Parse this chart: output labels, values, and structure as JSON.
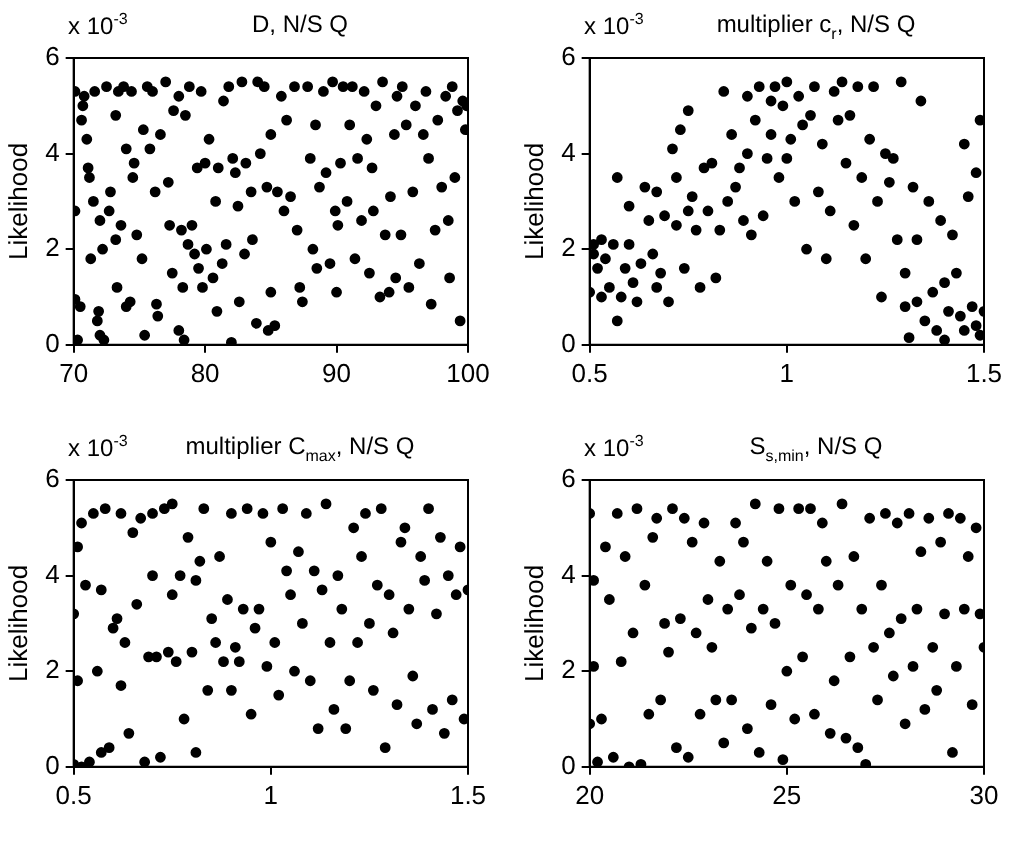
{
  "chart_data": [
    {
      "type": "scatter",
      "title": "D,  N/S  Q",
      "ylabel": "Likelihood",
      "annotations": [
        "x 10$^{-3}$"
      ],
      "color": "#000000",
      "marker": "circle",
      "xlim": [
        70,
        100
      ],
      "ylim": [
        0,
        6
      ],
      "xticks": [
        70,
        80,
        90,
        100
      ],
      "yticks": [
        0,
        2,
        4,
        6
      ],
      "x": [
        70.1,
        70.1,
        70.1,
        70.3,
        70.5,
        70.6,
        70.7,
        70.8,
        71.0,
        71.1,
        71.2,
        71.3,
        71.5,
        71.6,
        71.8,
        71.9,
        72.0,
        72.0,
        72.2,
        72.3,
        72.5,
        72.7,
        72.8,
        73.2,
        73.2,
        73.3,
        73.4,
        73.6,
        73.8,
        74.0,
        74.0,
        74.3,
        74.4,
        74.5,
        74.6,
        74.8,
        75.2,
        75.3,
        75.4,
        75.6,
        75.8,
        76.0,
        76.2,
        76.3,
        76.4,
        76.6,
        77.0,
        77.2,
        77.3,
        77.5,
        77.6,
        78.0,
        78.0,
        78.2,
        78.3,
        78.4,
        78.5,
        78.7,
        78.8,
        79.0,
        79.2,
        79.4,
        79.5,
        79.7,
        79.8,
        80.0,
        80.1,
        80.3,
        80.6,
        80.8,
        80.9,
        81.0,
        81.3,
        81.4,
        81.6,
        81.8,
        82.1,
        82.0,
        82.3,
        82.5,
        82.6,
        82.8,
        83.0,
        83.1,
        83.5,
        83.6,
        83.9,
        84.0,
        84.2,
        84.5,
        84.7,
        84.8,
        85.0,
        85.0,
        85.3,
        85.5,
        85.8,
        86.0,
        86.2,
        86.5,
        86.8,
        87.0,
        87.2,
        87.4,
        87.8,
        88.0,
        88.2,
        88.4,
        88.5,
        88.7,
        89.0,
        89.2,
        89.5,
        89.7,
        89.9,
        90.0,
        90.1,
        90.3,
        90.5,
        90.8,
        91.0,
        91.2,
        91.4,
        91.6,
        91.9,
        92.1,
        92.3,
        92.5,
        92.7,
        92.8,
        93.0,
        93.3,
        93.5,
        93.7,
        94.0,
        94.1,
        94.4,
        94.5,
        94.6,
        94.9,
        95.0,
        95.3,
        95.5,
        95.8,
        96.0,
        96.3,
        96.6,
        96.8,
        97.0,
        97.2,
        97.5,
        97.7,
        98.0,
        98.3,
        98.5,
        98.6,
        98.8,
        99.0,
        99.2,
        99.4,
        99.6,
        99.8,
        99.9
      ],
      "values": [
        5.3,
        2.8,
        0.95,
        0.1,
        0.8,
        4.7,
        5.0,
        5.2,
        4.3,
        3.7,
        3.5,
        1.8,
        3.0,
        5.3,
        0.5,
        0.7,
        2.6,
        0.2,
        2.0,
        0.1,
        5.4,
        2.8,
        3.2,
        2.2,
        4.8,
        1.2,
        5.3,
        2.5,
        5.4,
        4.1,
        0.8,
        0.9,
        5.3,
        3.5,
        3.8,
        2.3,
        1.8,
        4.5,
        0.2,
        5.4,
        4.1,
        5.3,
        3.2,
        0.85,
        0.6,
        4.4,
        5.5,
        3.4,
        2.5,
        1.5,
        4.9,
        5.2,
        0.3,
        2.4,
        1.2,
        0.1,
        4.8,
        2.1,
        5.4,
        2.5,
        1.9,
        3.7,
        1.6,
        5.3,
        1.2,
        3.8,
        2.0,
        4.3,
        1.4,
        3.0,
        0.7,
        3.7,
        1.7,
        5.1,
        2.1,
        5.4,
        3.9,
        0.05,
        3.6,
        2.9,
        0.9,
        5.5,
        1.9,
        3.8,
        3.2,
        2.2,
        0.45,
        5.5,
        4.0,
        5.4,
        3.3,
        0.3,
        4.4,
        1.1,
        0.4,
        3.2,
        5.2,
        2.8,
        4.7,
        3.1,
        5.4,
        2.4,
        1.2,
        0.9,
        5.4,
        3.9,
        2.0,
        4.6,
        1.6,
        3.3,
        5.3,
        3.6,
        1.7,
        5.5,
        2.8,
        1.1,
        2.5,
        3.8,
        5.4,
        3.0,
        4.6,
        5.4,
        1.8,
        3.9,
        2.6,
        5.3,
        4.3,
        1.5,
        3.7,
        2.8,
        5.0,
        1.0,
        5.5,
        2.3,
        1.1,
        3.1,
        4.4,
        1.4,
        5.2,
        2.3,
        5.4,
        4.6,
        1.2,
        3.2,
        5.0,
        1.7,
        4.4,
        5.3,
        3.9,
        0.85,
        2.4,
        4.7,
        3.3,
        5.2,
        2.6,
        1.4,
        5.4,
        3.5,
        4.9,
        0.5,
        5.1,
        4.5,
        5.0
      ]
    },
    {
      "type": "scatter",
      "title": "multiplier c$_{r}$,  N/S  Q",
      "ylabel": "Likelihood",
      "annotations": [
        "x 10$^{-3}$"
      ],
      "color": "#000000",
      "marker": "circle",
      "xlim": [
        0.5,
        1.5
      ],
      "ylim": [
        0,
        6
      ],
      "xticks": [
        0.5,
        1,
        1.5
      ],
      "yticks": [
        0,
        2,
        4,
        6
      ],
      "x": [
        0.5,
        0.51,
        0.51,
        0.52,
        0.53,
        0.53,
        0.54,
        0.55,
        0.56,
        0.57,
        0.57,
        0.58,
        0.59,
        0.6,
        0.6,
        0.61,
        0.62,
        0.63,
        0.64,
        0.65,
        0.66,
        0.67,
        0.67,
        0.68,
        0.69,
        0.7,
        0.71,
        0.72,
        0.72,
        0.73,
        0.74,
        0.75,
        0.75,
        0.76,
        0.77,
        0.78,
        0.79,
        0.8,
        0.81,
        0.82,
        0.83,
        0.84,
        0.85,
        0.86,
        0.87,
        0.88,
        0.89,
        0.9,
        0.9,
        0.91,
        0.92,
        0.93,
        0.94,
        0.95,
        0.96,
        0.96,
        0.97,
        0.98,
        0.99,
        1.0,
        1.0,
        1.01,
        1.02,
        1.03,
        1.04,
        1.05,
        1.06,
        1.07,
        1.08,
        1.09,
        1.1,
        1.11,
        1.12,
        1.13,
        1.14,
        1.15,
        1.16,
        1.17,
        1.18,
        1.19,
        1.2,
        1.21,
        1.22,
        1.23,
        1.24,
        1.25,
        1.26,
        1.27,
        1.28,
        1.29,
        1.3,
        1.3,
        1.31,
        1.32,
        1.33,
        1.33,
        1.34,
        1.35,
        1.36,
        1.37,
        1.38,
        1.39,
        1.4,
        1.4,
        1.41,
        1.42,
        1.43,
        1.44,
        1.45,
        1.45,
        1.46,
        1.47,
        1.48,
        1.48,
        1.49,
        1.49,
        1.5
      ],
      "values": [
        1.1,
        1.9,
        2.1,
        1.6,
        1.0,
        2.2,
        1.8,
        1.2,
        2.1,
        3.5,
        0.5,
        1.0,
        1.6,
        2.9,
        2.1,
        1.3,
        0.9,
        1.7,
        3.3,
        2.6,
        1.9,
        3.2,
        1.2,
        1.5,
        2.7,
        0.9,
        4.1,
        3.5,
        2.5,
        4.5,
        1.6,
        2.8,
        4.9,
        3.1,
        2.4,
        1.2,
        3.7,
        2.8,
        3.8,
        1.4,
        2.4,
        5.3,
        3.0,
        4.4,
        3.3,
        3.7,
        2.6,
        5.2,
        4.0,
        2.3,
        4.7,
        5.4,
        2.7,
        3.9,
        5.1,
        4.4,
        5.4,
        3.5,
        5.0,
        3.9,
        5.5,
        4.3,
        3.0,
        5.2,
        4.6,
        2.0,
        4.8,
        5.4,
        3.2,
        4.2,
        1.8,
        2.8,
        5.3,
        4.7,
        5.5,
        3.8,
        4.8,
        2.5,
        5.4,
        3.5,
        1.8,
        4.3,
        5.4,
        3.0,
        1.0,
        4.0,
        3.4,
        3.9,
        2.2,
        5.5,
        0.8,
        1.5,
        0.15,
        3.3,
        0.9,
        2.2,
        5.1,
        0.5,
        3.0,
        1.1,
        0.3,
        2.6,
        1.3,
        0.1,
        0.7,
        2.3,
        1.5,
        0.6,
        4.2,
        0.3,
        3.1,
        0.8,
        0.4,
        3.6,
        0.2,
        4.7,
        0.7
      ]
    },
    {
      "type": "scatter",
      "title": "multiplier C$_{max}$,  N/S  Q",
      "ylabel": "Likelihood",
      "annotations": [
        "x 10$^{-3}$"
      ],
      "color": "#000000",
      "marker": "circle",
      "xlim": [
        0.5,
        1.5
      ],
      "ylim": [
        0,
        6
      ],
      "xticks": [
        0.5,
        1,
        1.5
      ],
      "yticks": [
        0,
        2,
        4,
        6
      ],
      "x": [
        0.5,
        0.5,
        0.51,
        0.51,
        0.52,
        0.52,
        0.53,
        0.54,
        0.55,
        0.56,
        0.57,
        0.57,
        0.58,
        0.59,
        0.6,
        0.61,
        0.62,
        0.62,
        0.63,
        0.64,
        0.65,
        0.66,
        0.67,
        0.68,
        0.69,
        0.7,
        0.7,
        0.71,
        0.72,
        0.73,
        0.74,
        0.75,
        0.75,
        0.76,
        0.77,
        0.78,
        0.79,
        0.8,
        0.81,
        0.81,
        0.82,
        0.83,
        0.84,
        0.85,
        0.86,
        0.87,
        0.88,
        0.89,
        0.9,
        0.9,
        0.91,
        0.92,
        0.93,
        0.94,
        0.95,
        0.96,
        0.97,
        0.98,
        0.99,
        1.0,
        1.01,
        1.02,
        1.03,
        1.04,
        1.05,
        1.06,
        1.07,
        1.08,
        1.09,
        1.1,
        1.11,
        1.12,
        1.13,
        1.14,
        1.15,
        1.16,
        1.17,
        1.18,
        1.19,
        1.2,
        1.21,
        1.22,
        1.23,
        1.24,
        1.25,
        1.26,
        1.27,
        1.28,
        1.29,
        1.3,
        1.31,
        1.32,
        1.33,
        1.34,
        1.35,
        1.36,
        1.37,
        1.38,
        1.39,
        1.4,
        1.41,
        1.42,
        1.43,
        1.44,
        1.45,
        1.46,
        1.47,
        1.48,
        1.49,
        1.5
      ],
      "values": [
        0.05,
        3.2,
        4.6,
        1.8,
        5.1,
        0.0,
        3.8,
        0.1,
        5.3,
        2.0,
        0.3,
        3.7,
        5.4,
        0.4,
        2.9,
        3.1,
        5.3,
        1.7,
        2.6,
        0.7,
        4.9,
        3.4,
        5.2,
        0.1,
        2.3,
        5.3,
        4.0,
        2.3,
        0.2,
        5.4,
        2.4,
        5.5,
        3.6,
        2.2,
        4.0,
        1.0,
        4.8,
        2.4,
        0.3,
        3.9,
        4.3,
        5.4,
        1.6,
        3.1,
        2.6,
        4.4,
        2.2,
        3.5,
        5.3,
        1.6,
        2.5,
        2.2,
        3.3,
        5.4,
        1.1,
        2.9,
        3.3,
        5.3,
        2.1,
        4.7,
        2.6,
        1.5,
        5.4,
        4.1,
        3.6,
        2.0,
        4.5,
        3.0,
        5.3,
        1.8,
        4.1,
        0.8,
        3.7,
        5.5,
        2.6,
        1.2,
        4.0,
        3.3,
        0.8,
        1.8,
        5.0,
        2.6,
        4.4,
        5.3,
        3.0,
        1.6,
        3.8,
        5.4,
        0.4,
        3.6,
        2.8,
        1.3,
        4.7,
        5.0,
        3.3,
        1.9,
        0.9,
        4.4,
        3.9,
        5.4,
        1.2,
        3.2,
        4.8,
        0.7,
        4.0,
        1.4,
        3.6,
        4.6,
        1.0,
        3.7
      ]
    },
    {
      "type": "scatter",
      "title": "S$_{s,min}$,  N/S  Q",
      "ylabel": "Likelihood",
      "annotations": [
        "x 10$^{-3}$"
      ],
      "color": "#000000",
      "marker": "circle",
      "xlim": [
        20,
        30
      ],
      "ylim": [
        0,
        6
      ],
      "xticks": [
        20,
        25,
        30
      ],
      "yticks": [
        0,
        2,
        4,
        6
      ],
      "x": [
        20.0,
        20.0,
        20.1,
        20.1,
        20.2,
        20.3,
        20.4,
        20.5,
        20.6,
        20.7,
        20.8,
        20.9,
        21.0,
        21.1,
        21.2,
        21.3,
        21.4,
        21.5,
        21.6,
        21.7,
        21.8,
        21.9,
        22.0,
        22.1,
        22.2,
        22.3,
        22.4,
        22.5,
        22.6,
        22.7,
        22.8,
        22.9,
        23.0,
        23.1,
        23.2,
        23.3,
        23.4,
        23.5,
        23.6,
        23.7,
        23.8,
        23.9,
        24.0,
        24.1,
        24.2,
        24.3,
        24.4,
        24.5,
        24.6,
        24.7,
        24.8,
        24.9,
        25.0,
        25.1,
        25.2,
        25.3,
        25.4,
        25.5,
        25.6,
        25.7,
        25.8,
        25.9,
        26.0,
        26.1,
        26.2,
        26.3,
        26.4,
        26.5,
        26.6,
        26.7,
        26.8,
        26.9,
        27.0,
        27.1,
        27.2,
        27.3,
        27.4,
        27.5,
        27.6,
        27.7,
        27.8,
        27.9,
        28.0,
        28.1,
        28.2,
        28.3,
        28.4,
        28.5,
        28.6,
        28.7,
        28.8,
        28.9,
        29.0,
        29.1,
        29.2,
        29.3,
        29.4,
        29.5,
        29.6,
        29.7,
        29.8,
        29.9,
        30.0
      ],
      "values": [
        0.9,
        5.3,
        3.9,
        2.1,
        0.1,
        1.0,
        4.6,
        3.5,
        0.2,
        5.3,
        2.2,
        4.4,
        0.0,
        2.8,
        5.4,
        0.05,
        3.8,
        1.1,
        4.8,
        5.2,
        1.4,
        3.0,
        2.4,
        5.4,
        0.4,
        3.1,
        5.2,
        0.2,
        4.7,
        2.8,
        1.1,
        5.1,
        3.5,
        2.5,
        1.4,
        4.3,
        0.5,
        3.3,
        1.4,
        5.1,
        3.6,
        4.7,
        0.8,
        2.9,
        5.5,
        0.3,
        3.3,
        4.3,
        1.3,
        3.0,
        5.4,
        0.15,
        2.0,
        3.8,
        1.0,
        5.4,
        2.3,
        3.6,
        5.4,
        1.1,
        3.3,
        5.1,
        4.3,
        0.7,
        1.8,
        3.8,
        5.5,
        0.6,
        2.3,
        4.4,
        0.4,
        3.3,
        0.05,
        5.2,
        2.5,
        1.4,
        3.8,
        5.3,
        2.8,
        1.9,
        5.1,
        3.1,
        0.9,
        5.3,
        2.1,
        3.3,
        4.5,
        1.2,
        5.2,
        2.5,
        1.6,
        4.7,
        3.2,
        5.3,
        0.3,
        2.1,
        5.2,
        3.3,
        4.4,
        1.3,
        5.0,
        3.2,
        2.5
      ]
    }
  ]
}
